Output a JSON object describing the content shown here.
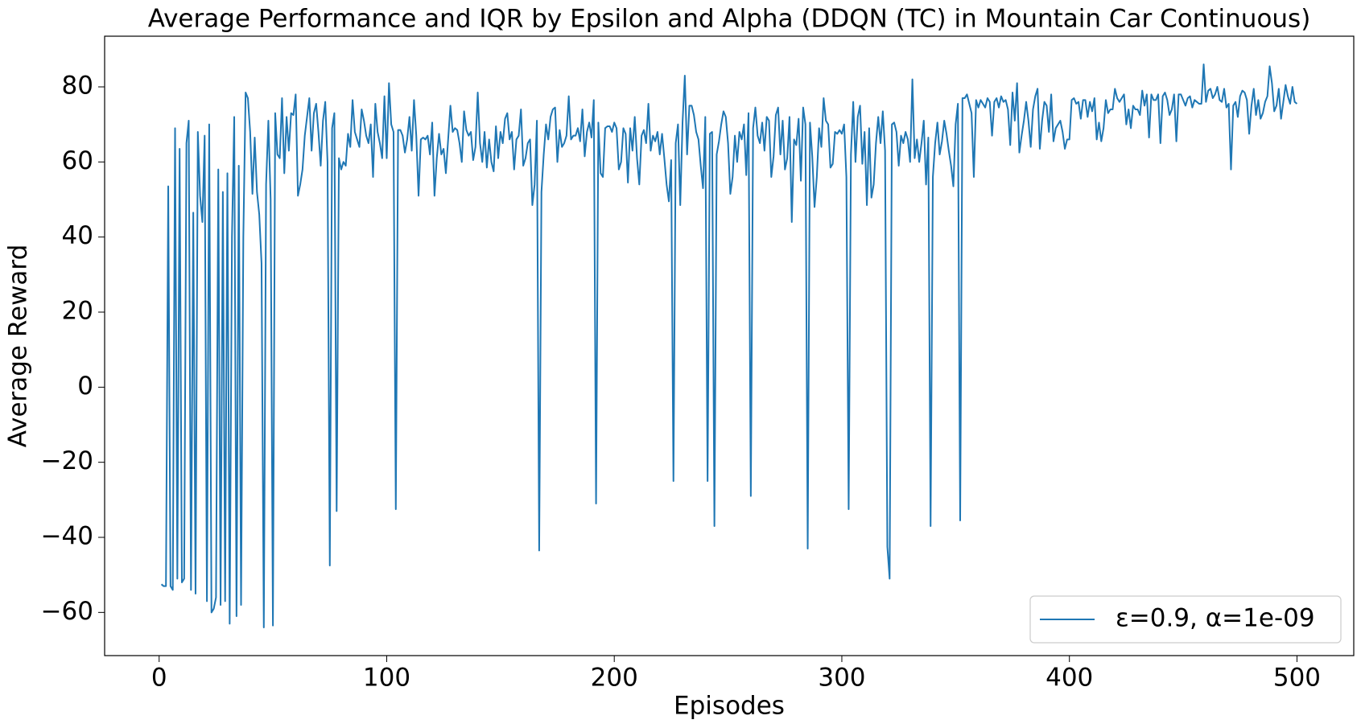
{
  "chart_data": {
    "type": "line",
    "title": "Average Performance and IQR by Epsilon and Alpha (DDQN (TC) in Mountain Car Continuous)",
    "x_label": "Episodes",
    "y_label": "Average Reward",
    "legend": "lower right",
    "xlim": [
      -23.95,
      524.95
    ],
    "ylim": [
      -71.5,
      93.5
    ],
    "xticks": [
      0,
      100,
      200,
      300,
      400,
      500
    ],
    "yticks": [
      {
        "value": -60,
        "label": "−60"
      },
      {
        "value": -40,
        "label": "−40"
      },
      {
        "value": -20,
        "label": "−20"
      },
      0,
      20,
      40,
      60,
      80
    ],
    "x": [
      1,
      2,
      3,
      4,
      5,
      6,
      7,
      8,
      9,
      10,
      11,
      12,
      13,
      14,
      15,
      16,
      17,
      18,
      19,
      20,
      21,
      22,
      23,
      24,
      25,
      26,
      27,
      28,
      29,
      30,
      31,
      32,
      33,
      34,
      35,
      36,
      37,
      38,
      39,
      40,
      41,
      42,
      43,
      44,
      45,
      46,
      47,
      48,
      49,
      50,
      51,
      52,
      53,
      54,
      55,
      56,
      57,
      58,
      59,
      60,
      61,
      62,
      63,
      64,
      65,
      66,
      67,
      68,
      69,
      70,
      71,
      72,
      73,
      74,
      75,
      76,
      77,
      78,
      79,
      80,
      81,
      82,
      83,
      84,
      85,
      86,
      87,
      88,
      89,
      90,
      91,
      92,
      93,
      94,
      95,
      96,
      97,
      98,
      99,
      100,
      101,
      102,
      103,
      104,
      105,
      106,
      107,
      108,
      109,
      110,
      111,
      112,
      113,
      114,
      115,
      116,
      117,
      118,
      119,
      120,
      121,
      122,
      123,
      124,
      125,
      126,
      127,
      128,
      129,
      130,
      131,
      132,
      133,
      134,
      135,
      136,
      137,
      138,
      139,
      140,
      141,
      142,
      143,
      144,
      145,
      146,
      147,
      148,
      149,
      150,
      151,
      152,
      153,
      154,
      155,
      156,
      157,
      158,
      159,
      160,
      161,
      162,
      163,
      164,
      165,
      166,
      167,
      168,
      169,
      170,
      171,
      172,
      173,
      174,
      175,
      176,
      177,
      178,
      179,
      180,
      181,
      182,
      183,
      184,
      185,
      186,
      187,
      188,
      189,
      190,
      191,
      192,
      193,
      194,
      195,
      196,
      197,
      198,
      199,
      200,
      201,
      202,
      203,
      204,
      205,
      206,
      207,
      208,
      209,
      210,
      211,
      212,
      213,
      214,
      215,
      216,
      217,
      218,
      219,
      220,
      221,
      222,
      223,
      224,
      225,
      226,
      227,
      228,
      229,
      230,
      231,
      232,
      233,
      234,
      235,
      236,
      237,
      238,
      239,
      240,
      241,
      242,
      243,
      244,
      245,
      246,
      247,
      248,
      249,
      250,
      251,
      252,
      253,
      254,
      255,
      256,
      257,
      258,
      259,
      260,
      261,
      262,
      263,
      264,
      265,
      266,
      267,
      268,
      269,
      270,
      271,
      272,
      273,
      274,
      275,
      276,
      277,
      278,
      279,
      280,
      281,
      282,
      283,
      284,
      285,
      286,
      287,
      288,
      289,
      290,
      291,
      292,
      293,
      294,
      295,
      296,
      297,
      298,
      299,
      300,
      301,
      302,
      303,
      304,
      305,
      306,
      307,
      308,
      309,
      310,
      311,
      312,
      313,
      314,
      315,
      316,
      317,
      318,
      319,
      320,
      321,
      322,
      323,
      324,
      325,
      326,
      327,
      328,
      329,
      330,
      331,
      332,
      333,
      334,
      335,
      336,
      337,
      338,
      339,
      340,
      341,
      342,
      343,
      344,
      345,
      346,
      347,
      348,
      349,
      350,
      351,
      352,
      353,
      354,
      355,
      356,
      357,
      358,
      359,
      360,
      361,
      362,
      363,
      364,
      365,
      366,
      367,
      368,
      369,
      370,
      371,
      372,
      373,
      374,
      375,
      376,
      377,
      378,
      379,
      380,
      381,
      382,
      383,
      384,
      385,
      386,
      387,
      388,
      389,
      390,
      391,
      392,
      393,
      394,
      395,
      396,
      397,
      398,
      399,
      400,
      401,
      402,
      403,
      404,
      405,
      406,
      407,
      408,
      409,
      410,
      411,
      412,
      413,
      414,
      415,
      416,
      417,
      418,
      419,
      420,
      421,
      422,
      423,
      424,
      425,
      426,
      427,
      428,
      429,
      430,
      431,
      432,
      433,
      434,
      435,
      436,
      437,
      438,
      439,
      440,
      441,
      442,
      443,
      444,
      445,
      446,
      447,
      448,
      449,
      450,
      451,
      452,
      453,
      454,
      455,
      456,
      457,
      458,
      459,
      460,
      461,
      462,
      463,
      464,
      465,
      466,
      467,
      468,
      469,
      470,
      471,
      472,
      473,
      474,
      475,
      476,
      477,
      478,
      479,
      480,
      481,
      482,
      483,
      484,
      485,
      486,
      487,
      488,
      489,
      490,
      491,
      492,
      493,
      494,
      495,
      496,
      497,
      498,
      499,
      500
    ],
    "series": [
      {
        "name": "ε=0.9, α=1e-09",
        "color": "#1f77b4",
        "values": [
          -52.5,
          -53,
          -53,
          53.5,
          -53,
          -54,
          69,
          -51,
          63.5,
          -52,
          -51,
          65,
          71,
          -54,
          46.5,
          -55,
          68,
          51,
          44,
          67,
          -57,
          70,
          -60,
          -59,
          -56,
          58,
          -58,
          52,
          -57,
          57,
          -63,
          40,
          72,
          -61,
          59,
          -58,
          40,
          78.5,
          77,
          68,
          51.5,
          66.5,
          52,
          46,
          33,
          -64,
          54,
          71,
          50,
          -63.5,
          73,
          62,
          61,
          77,
          57,
          72,
          63,
          73,
          72.5,
          78,
          51,
          54,
          58,
          67,
          72,
          77,
          63,
          73,
          75.5,
          68,
          59,
          71,
          76,
          60,
          -47.5,
          69,
          73,
          -33,
          61,
          58,
          60,
          59,
          67.5,
          64,
          76.5,
          68,
          66,
          64,
          74,
          71,
          67,
          65,
          70,
          56,
          75.5,
          68,
          65,
          61,
          77.5,
          61,
          81,
          70,
          68,
          -32.5,
          68.5,
          68.5,
          67,
          62.5,
          66,
          72,
          63,
          76.5,
          67,
          51,
          66,
          66.5,
          66,
          67,
          62,
          70.5,
          51,
          61,
          67.5,
          62,
          63.5,
          57,
          66,
          75,
          68,
          69,
          68.5,
          65,
          60,
          73.5,
          68.5,
          67,
          68,
          60.5,
          64,
          78.5,
          65,
          60,
          68,
          58.5,
          66,
          60,
          57.5,
          69.5,
          61,
          68,
          65,
          71.5,
          73,
          66,
          68,
          58,
          66,
          67,
          74,
          59,
          61,
          65,
          66,
          48.5,
          54,
          71,
          -43.5,
          52,
          62,
          70,
          66,
          72,
          74,
          74.5,
          60,
          68.5,
          64,
          65,
          67,
          77.5,
          66,
          67,
          67,
          69,
          65.5,
          74,
          61.5,
          68,
          70.5,
          66.5,
          76.5,
          -31,
          70.5,
          57,
          56,
          69,
          69.5,
          69.5,
          68,
          70.5,
          69,
          58,
          60,
          69,
          67.5,
          54.5,
          69,
          63,
          72,
          61,
          54,
          67,
          68.5,
          65,
          75.5,
          63,
          67,
          65.5,
          68,
          62,
          67.5,
          61,
          54,
          49.5,
          60.5,
          -25,
          65,
          70,
          48.5,
          70.5,
          83,
          62,
          75,
          75,
          72.5,
          68,
          66,
          59,
          53,
          72,
          -25,
          67.5,
          68,
          -37,
          62,
          65.5,
          70,
          73.5,
          72,
          65,
          51.5,
          56,
          67,
          60,
          68,
          66,
          70,
          56.5,
          73,
          -29,
          69,
          74.5,
          67,
          65,
          70.5,
          63,
          72,
          71,
          56,
          61.5,
          72.5,
          74.5,
          62,
          71,
          58,
          61,
          72,
          44,
          66,
          64.5,
          71.5,
          55,
          74.5,
          70,
          -43,
          70.5,
          61.5,
          48,
          56,
          69,
          64,
          77,
          71,
          70,
          58.5,
          59.5,
          68,
          67.5,
          68.5,
          67.5,
          70,
          56,
          -32.5,
          62,
          76,
          60,
          72,
          75,
          59.5,
          68,
          48.5,
          69,
          50.5,
          54,
          65,
          72,
          65,
          73.5,
          63,
          -42.5,
          -51,
          70,
          70.5,
          68,
          59,
          67,
          65,
          68,
          66,
          60,
          82,
          61,
          66,
          60,
          65,
          71,
          54,
          66.5,
          -37,
          56,
          65,
          70.5,
          62,
          65.5,
          71,
          67.5,
          63,
          59,
          53.5,
          70,
          75.5,
          -35.5,
          77,
          77,
          78,
          75.5,
          73,
          56,
          76.5,
          74.5,
          76.5,
          75.5,
          74.5,
          77,
          76,
          67,
          76,
          77,
          74.5,
          77.5,
          76,
          76.5,
          74,
          64.5,
          78.5,
          71,
          81,
          62.5,
          67,
          71,
          76,
          71,
          64,
          74,
          77.5,
          79.5,
          63.5,
          71,
          76,
          75,
          68,
          78,
          65.5,
          69,
          70,
          71,
          68,
          63.5,
          66,
          66,
          76.5,
          77,
          75.5,
          76,
          71.5,
          76.5,
          76.5,
          72,
          76,
          73.5,
          77,
          66,
          70.5,
          65.5,
          69,
          76.5,
          73,
          74,
          74,
          79.5,
          77,
          76,
          77,
          78,
          70,
          74,
          69,
          75,
          74,
          74,
          72.5,
          79,
          75,
          78,
          66.5,
          78,
          76.5,
          76.5,
          78,
          65,
          77.5,
          78.5,
          76.5,
          72.5,
          74,
          78,
          65.5,
          78,
          78,
          76.5,
          75,
          77,
          77.5,
          74.5,
          76.5,
          76,
          75.5,
          75.5,
          86,
          76,
          79,
          79.5,
          77,
          78,
          80,
          76.5,
          76,
          79.5,
          74.5,
          75.5,
          58,
          75,
          76,
          72,
          77.5,
          79,
          78.5,
          76.5,
          67.5,
          75,
          79.5,
          72.5,
          76.5,
          71.5,
          73,
          76,
          77.5,
          85.5,
          81,
          73.5,
          75,
          79.5,
          71.5,
          76,
          80.5,
          77.5,
          75.5,
          80,
          76,
          75.5
        ]
      }
    ]
  }
}
